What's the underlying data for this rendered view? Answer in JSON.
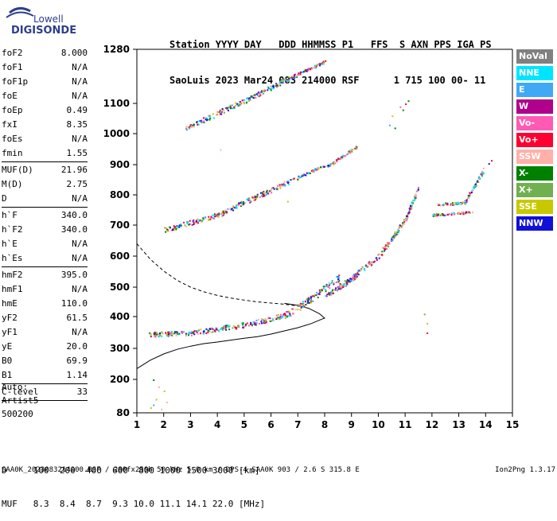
{
  "logo": {
    "line1": "Lowell",
    "line2": "DIGISONDE"
  },
  "header": {
    "line1": "Station YYYY DAY   DDD HHMMSS P1   FFS  S AXN PPS IGA PS",
    "line2": "SaoLuis 2023 Mar24 083 214000 RSF      1 715 100 00- 11"
  },
  "params": [
    {
      "name": "foF2",
      "value": "8.000"
    },
    {
      "name": "foF1",
      "value": "N/A"
    },
    {
      "name": "foF1p",
      "value": "N/A"
    },
    {
      "name": "foE",
      "value": "N/A"
    },
    {
      "name": "foEp",
      "value": "0.49"
    },
    {
      "name": "fxI",
      "value": "8.35"
    },
    {
      "name": "foEs",
      "value": "N/A"
    },
    {
      "name": "fmin",
      "value": "1.55"
    },
    {
      "sep": true
    },
    {
      "name": "MUF(D)",
      "value": "21.96"
    },
    {
      "name": "M(D)",
      "value": "2.75"
    },
    {
      "name": "D",
      "value": "N/A"
    },
    {
      "sep": true
    },
    {
      "name": "h`F",
      "value": "340.0"
    },
    {
      "name": "h`F2",
      "value": "340.0"
    },
    {
      "name": "h`E",
      "value": "N/A"
    },
    {
      "name": "h`Es",
      "value": "N/A"
    },
    {
      "sep": true
    },
    {
      "name": "hmF2",
      "value": "395.0"
    },
    {
      "name": "hmF1",
      "value": "N/A"
    },
    {
      "name": "hmE",
      "value": "110.0"
    },
    {
      "name": "yF2",
      "value": "61.5"
    },
    {
      "name": "yF1",
      "value": "N/A"
    },
    {
      "name": "yE",
      "value": "20.0"
    },
    {
      "name": "B0",
      "value": "69.9"
    },
    {
      "name": "B1",
      "value": "1.14"
    },
    {
      "sep": true
    },
    {
      "name": "C-level",
      "value": "33"
    },
    {
      "sep": true
    }
  ],
  "extra": {
    "auto": "Auto:",
    "artist": "Artist5",
    "code": "500200"
  },
  "legend": [
    {
      "label": "NoVal",
      "color": "#808080"
    },
    {
      "label": "NNE",
      "color": "#00e5ff"
    },
    {
      "label": "E",
      "color": "#3fa9f5"
    },
    {
      "label": "W",
      "color": "#b0008c"
    },
    {
      "label": "Vo-",
      "color": "#ff5ab4"
    },
    {
      "label": "Vo+",
      "color": "#ff0030"
    },
    {
      "label": "SSW",
      "color": "#ffb0a8"
    },
    {
      "label": "X-",
      "color": "#008000"
    },
    {
      "label": "X+",
      "color": "#70b050"
    },
    {
      "label": "SSE",
      "color": "#c8c800"
    },
    {
      "label": "NNW",
      "color": "#1010d8"
    }
  ],
  "muf_table": {
    "line1": "D     100  200  400  600  800 1000 1500 3000 [km]",
    "line2": "MUF   8.3  8.4  8.7  9.3 10.0 11.1 14.1 22.0 [MHz]"
  },
  "footer": {
    "left": "SAA0K_2023083214000.RSF / 280fx256h 50 kHz 5.0 km / DPS-4 SAA0K 903 / 2.6 S 315.8 E",
    "right": "Ion2Png 1.3.17"
  },
  "chart_data": {
    "type": "scatter",
    "xlim": [
      1,
      15
    ],
    "ylim": [
      80,
      1280
    ],
    "x_ticks": [
      1,
      2,
      3,
      4,
      5,
      6,
      7,
      8,
      9,
      10,
      11,
      12,
      13,
      14,
      15
    ],
    "y_ticks": [
      80,
      200,
      300,
      400,
      500,
      600,
      700,
      800,
      900,
      1000,
      1100,
      1280
    ],
    "y_tick_labels": [
      "80",
      "200",
      "300",
      "400",
      "500",
      "600",
      "700",
      "800",
      "900",
      "1000",
      "1100",
      "1280"
    ],
    "profile_solid": [
      [
        1.0,
        235
      ],
      [
        1.5,
        262
      ],
      [
        2.0,
        282
      ],
      [
        2.5,
        297
      ],
      [
        3.0,
        307
      ],
      [
        3.5,
        315
      ],
      [
        4.0,
        320
      ],
      [
        4.5,
        326
      ],
      [
        5.0,
        332
      ],
      [
        5.5,
        337
      ],
      [
        6.0,
        345
      ],
      [
        6.5,
        355
      ],
      [
        7.0,
        365
      ],
      [
        7.5,
        378
      ],
      [
        7.9,
        392
      ],
      [
        8.0,
        395
      ],
      [
        7.8,
        410
      ],
      [
        7.4,
        428
      ],
      [
        7.0,
        438
      ],
      [
        6.5,
        445
      ]
    ],
    "profile_dashed": [
      [
        1.0,
        640
      ],
      [
        1.5,
        590
      ],
      [
        2.0,
        552
      ],
      [
        2.5,
        522
      ],
      [
        3.0,
        500
      ],
      [
        3.5,
        484
      ],
      [
        4.0,
        472
      ],
      [
        4.5,
        463
      ],
      [
        5.0,
        456
      ],
      [
        5.5,
        450
      ],
      [
        6.0,
        446
      ],
      [
        6.5,
        442
      ],
      [
        7.0,
        436
      ],
      [
        7.3,
        430
      ]
    ],
    "traces": [
      {
        "x0": 1.4,
        "y0": 345,
        "x1": 3.0,
        "y1": 350,
        "thick": 2
      },
      {
        "x0": 3.0,
        "y0": 350,
        "x1": 5.0,
        "y1": 375,
        "thick": 2
      },
      {
        "x0": 5.0,
        "y0": 375,
        "x1": 6.5,
        "y1": 405,
        "thick": 2
      },
      {
        "x0": 6.5,
        "y0": 405,
        "x1": 7.5,
        "y1": 460,
        "thick": 3
      },
      {
        "x0": 7.3,
        "y0": 450,
        "x1": 8.5,
        "y1": 530,
        "thick": 3
      },
      {
        "x0": 8.0,
        "y0": 470,
        "x1": 9.2,
        "y1": 540,
        "thick": 2
      },
      {
        "x0": 8.5,
        "y0": 500,
        "x1": 10.0,
        "y1": 600,
        "thick": 2
      },
      {
        "x0": 10.0,
        "y0": 600,
        "x1": 11.0,
        "y1": 720,
        "thick": 2
      },
      {
        "x0": 11.0,
        "y0": 720,
        "x1": 11.5,
        "y1": 830,
        "thick": 1
      },
      {
        "x0": 12.2,
        "y0": 770,
        "x1": 13.2,
        "y1": 775,
        "thick": 1
      },
      {
        "x0": 13.2,
        "y0": 775,
        "x1": 13.9,
        "y1": 880,
        "thick": 1
      },
      {
        "x0": 12.0,
        "y0": 735,
        "x1": 13.5,
        "y1": 745,
        "thick": 1
      },
      {
        "x0": 2.0,
        "y0": 685,
        "x1": 4.0,
        "y1": 735,
        "thick": 2
      },
      {
        "x0": 4.0,
        "y0": 735,
        "x1": 7.0,
        "y1": 860,
        "thick": 2
      },
      {
        "x0": 7.0,
        "y0": 860,
        "x1": 8.0,
        "y1": 900,
        "thick": 1
      },
      {
        "x0": 8.0,
        "y0": 890,
        "x1": 9.2,
        "y1": 960,
        "thick": 1
      },
      {
        "x0": 2.8,
        "y0": 1020,
        "x1": 5.0,
        "y1": 1110,
        "thick": 2
      },
      {
        "x0": 5.0,
        "y0": 1110,
        "x1": 7.0,
        "y1": 1200,
        "thick": 2
      },
      {
        "x0": 7.0,
        "y0": 1200,
        "x1": 8.0,
        "y1": 1240,
        "thick": 1
      }
    ],
    "scatter_points": [
      [
        10.4,
        1030
      ],
      [
        10.5,
        1060
      ],
      [
        10.6,
        1020
      ],
      [
        10.9,
        1080
      ],
      [
        11.0,
        1100
      ],
      [
        11.1,
        1110
      ],
      [
        10.8,
        1090
      ],
      [
        11.7,
        410
      ],
      [
        11.8,
        380
      ],
      [
        11.8,
        350
      ],
      [
        1.6,
        200
      ],
      [
        1.8,
        175
      ],
      [
        2.0,
        160
      ],
      [
        1.7,
        130
      ],
      [
        1.5,
        100
      ],
      [
        1.9,
        95
      ],
      [
        2.1,
        120
      ],
      [
        1.6,
        110
      ],
      [
        4.1,
        950
      ],
      [
        6.6,
        780
      ],
      [
        13.9,
        890
      ],
      [
        14.1,
        905
      ],
      [
        14.2,
        915
      ]
    ]
  }
}
